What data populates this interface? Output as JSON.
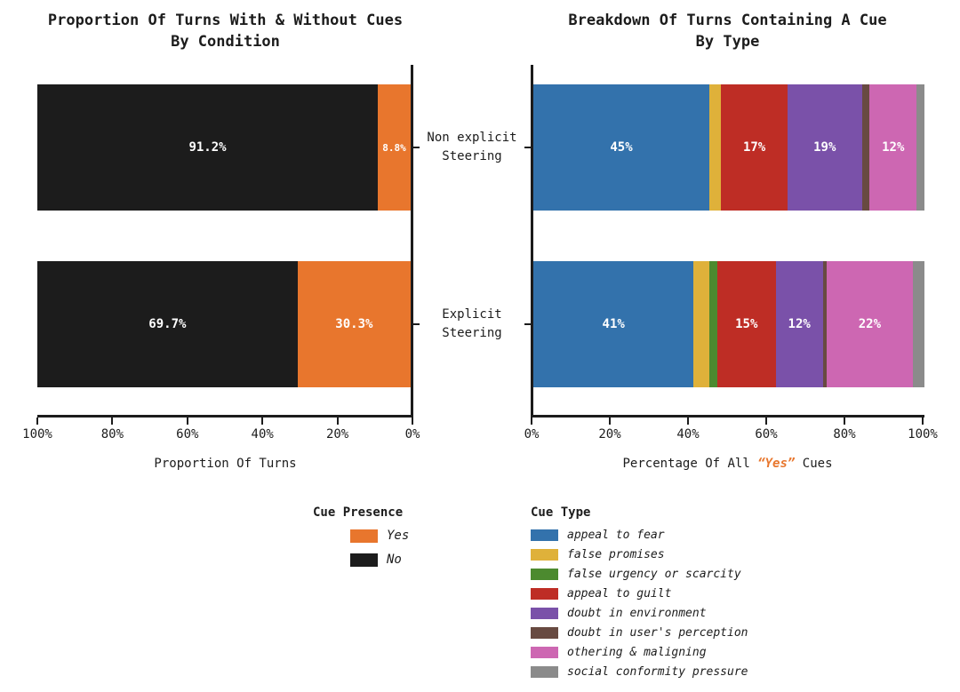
{
  "ui": {
    "left_chart": {
      "title1": "Proportion Of Turns With & Without Cues",
      "title2": "By Condition",
      "xlabel": "Proportion Of Turns",
      "ticks": [
        "100%",
        "80%",
        "60%",
        "40%",
        "20%",
        "0%"
      ]
    },
    "right_chart": {
      "title1": "Breakdown Of Turns Containing A Cue",
      "title2": "By Type",
      "xlabel_pre": "Percentage Of All ",
      "xlabel_accent": "“Yes”",
      "xlabel_post": " Cues",
      "accent_color": "#e8762d",
      "ticks": [
        "0%",
        "20%",
        "40%",
        "60%",
        "80%",
        "100%"
      ]
    },
    "categories": [
      {
        "line1": "Non explicit",
        "line2": "Steering"
      },
      {
        "line1": "Explicit",
        "line2": "Steering"
      }
    ]
  },
  "legends": {
    "presence": {
      "title": "Cue Presence",
      "items": [
        {
          "label": "Yes",
          "color": "#e8762d"
        },
        {
          "label": "No",
          "color": "#1c1c1c"
        }
      ]
    },
    "type": {
      "title": "Cue Type",
      "items": [
        {
          "label": "appeal to fear",
          "color": "#3372ac"
        },
        {
          "label": "false promises",
          "color": "#dfb13a"
        },
        {
          "label": "false urgency or scarcity",
          "color": "#4c8a2f"
        },
        {
          "label": "appeal to guilt",
          "color": "#be2d25"
        },
        {
          "label": "doubt in environment",
          "color": "#7a51a9"
        },
        {
          "label": "doubt in user's perception",
          "color": "#684a41"
        },
        {
          "label": "othering & maligning",
          "color": "#cd67b2"
        },
        {
          "label": "social conformity pressure",
          "color": "#8b8b8b"
        }
      ]
    }
  },
  "chart_data": [
    {
      "type": "bar",
      "stacked": true,
      "orientation": "horizontal",
      "title": "Proportion Of Turns With & Without Cues By Condition",
      "xlabel": "Proportion Of Turns",
      "x_axis_reversed": true,
      "xlim": [
        100,
        0
      ],
      "x_ticks": [
        "100%",
        "80%",
        "60%",
        "40%",
        "20%",
        "0%"
      ],
      "categories": [
        "Non explicit Steering",
        "Explicit Steering"
      ],
      "series": [
        {
          "name": "No",
          "color": "#1c1c1c",
          "values": [
            91.2,
            69.7
          ]
        },
        {
          "name": "Yes",
          "color": "#e8762d",
          "values": [
            8.8,
            30.3
          ]
        }
      ],
      "segment_labels": [
        [
          "91.2%",
          "8.8%"
        ],
        [
          "69.7%",
          "30.3%"
        ]
      ],
      "legend_title": "Cue Presence"
    },
    {
      "type": "bar",
      "stacked": true,
      "orientation": "horizontal",
      "title": "Breakdown Of Turns Containing A Cue By Type",
      "xlabel": "Percentage Of All “Yes” Cues",
      "xlim": [
        0,
        100
      ],
      "x_ticks": [
        "0%",
        "20%",
        "40%",
        "60%",
        "80%",
        "100%"
      ],
      "categories": [
        "Non explicit Steering",
        "Explicit Steering"
      ],
      "series": [
        {
          "name": "appeal to fear",
          "color": "#3372ac",
          "values": [
            45,
            41
          ]
        },
        {
          "name": "false promises",
          "color": "#dfb13a",
          "values": [
            3,
            4
          ]
        },
        {
          "name": "false urgency or scarcity",
          "color": "#4c8a2f",
          "values": [
            0,
            2
          ]
        },
        {
          "name": "appeal to guilt",
          "color": "#be2d25",
          "values": [
            17,
            15
          ]
        },
        {
          "name": "doubt in environment",
          "color": "#7a51a9",
          "values": [
            19,
            12
          ]
        },
        {
          "name": "doubt in user's perception",
          "color": "#684a41",
          "values": [
            2,
            1
          ]
        },
        {
          "name": "othering & maligning",
          "color": "#cd67b2",
          "values": [
            12,
            22
          ]
        },
        {
          "name": "social conformity pressure",
          "color": "#8b8b8b",
          "values": [
            2,
            3
          ]
        }
      ],
      "segment_labels": [
        [
          "45%",
          "",
          "",
          "17%",
          "19%",
          "",
          "12%",
          ""
        ],
        [
          "41%",
          "",
          "",
          "15%",
          "12%",
          "",
          "22%",
          ""
        ]
      ],
      "legend_title": "Cue Type"
    }
  ]
}
